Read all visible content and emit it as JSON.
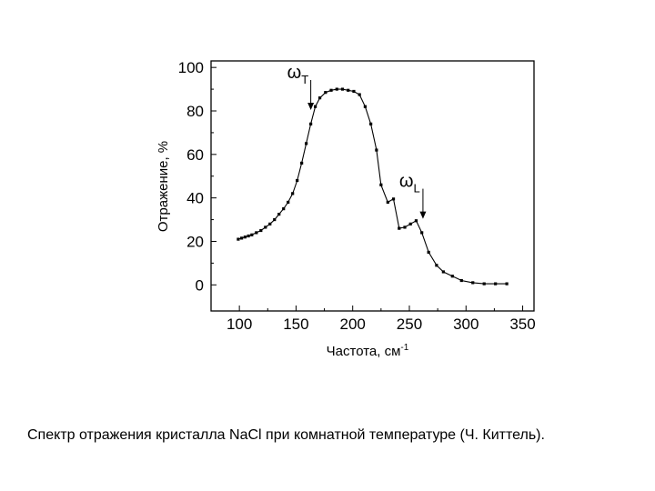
{
  "chart_data": {
    "type": "line",
    "xlabel": "Частота, см",
    "xlabel_sup": "-1",
    "ylabel": "Отражение, %",
    "xlim": [
      75,
      360
    ],
    "ylim": [
      -12,
      103
    ],
    "xticks": [
      100,
      150,
      200,
      250,
      300,
      350
    ],
    "yticks": [
      0,
      20,
      40,
      60,
      80,
      100
    ],
    "grid": false,
    "series": [
      {
        "x": [
          99,
          102,
          105,
          108,
          111,
          115,
          119,
          123,
          127,
          131,
          135,
          139,
          143,
          147,
          151,
          155,
          159,
          163,
          167,
          171,
          176,
          181,
          186,
          191,
          196,
          201,
          206,
          211,
          216,
          221,
          225,
          231,
          236,
          241,
          246,
          251,
          256,
          261,
          267,
          274,
          280,
          288,
          296,
          306,
          316,
          326,
          336
        ],
        "y": [
          21,
          21.5,
          22,
          22.5,
          23,
          24,
          25,
          26.5,
          28,
          30,
          32.5,
          35,
          38,
          42,
          48,
          56,
          65,
          74,
          82,
          86,
          88.5,
          89.5,
          90,
          90,
          89.5,
          89,
          87.5,
          82,
          74,
          62,
          46,
          38,
          39.5,
          26,
          26.5,
          28,
          29.5,
          24,
          15,
          9,
          6,
          4,
          2,
          1,
          0.5,
          0.5,
          0.5
        ]
      }
    ],
    "annotations": [
      {
        "symbol": "ω",
        "sub": "T",
        "x": 163,
        "y": 80
      },
      {
        "symbol": "ω",
        "sub": "L",
        "x": 262,
        "y": 30
      }
    ]
  },
  "caption": "Спектр отражения кристалла NaCl при комнатной температуре (Ч. Киттель)."
}
